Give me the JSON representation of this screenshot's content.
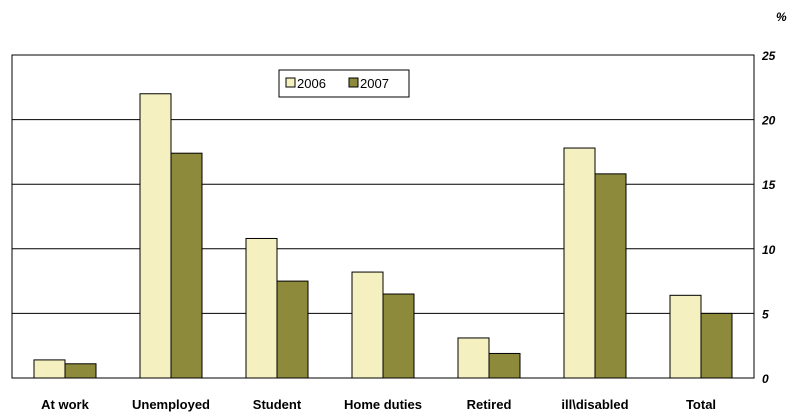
{
  "chart_data": {
    "type": "bar",
    "categories": [
      "At work",
      "Unemployed",
      "Student",
      "Home duties",
      "Retired",
      "ill\\disabled",
      "Total"
    ],
    "series": [
      {
        "name": "2006",
        "values": [
          1.4,
          22.0,
          10.8,
          8.2,
          3.1,
          17.8,
          6.4
        ],
        "color": "#f5f0c0"
      },
      {
        "name": "2007",
        "values": [
          1.1,
          17.4,
          7.5,
          6.5,
          1.9,
          15.8,
          5.0
        ],
        "color": "#8e8a3c"
      }
    ],
    "ylabel": "%",
    "ylim": [
      0,
      25
    ],
    "yticks": [
      0,
      5,
      10,
      15,
      20,
      25
    ],
    "grid": true,
    "legend_position": "top-center"
  }
}
